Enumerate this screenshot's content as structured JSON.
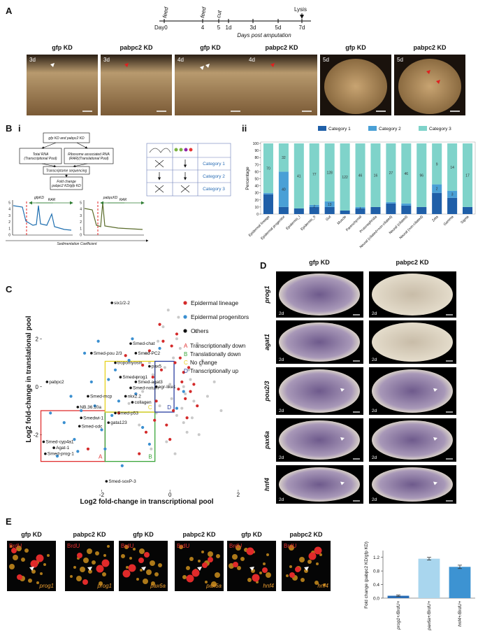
{
  "panel_labels": [
    "A",
    "B",
    "i",
    "ii",
    "C",
    "D",
    "E"
  ],
  "panel_a": {
    "timeline": {
      "day0": "Day0",
      "feed": [
        "feed",
        "feed"
      ],
      "cut": "cut",
      "ticks": [
        "4",
        "5",
        "1d",
        "3d",
        "5d",
        "7d"
      ],
      "lysis": "Lysis",
      "axis_label": "Days post amputation"
    },
    "images": [
      {
        "title": "gfp KD",
        "day": "3d"
      },
      {
        "title": "pabpc2 KD",
        "day": "3d"
      },
      {
        "title": "gfp KD",
        "day": "4d"
      },
      {
        "title": "pabpc2 KD",
        "day": "4d"
      },
      {
        "title": "gfp KD",
        "day": "5d"
      },
      {
        "title": "pabpc2 KD",
        "day": "5d"
      }
    ]
  },
  "panel_b": {
    "flow": [
      [
        "gfp KD and pabpc2 KD"
      ],
      [
        "Total RNA",
        "(Transcriptional Pool)"
      ],
      [
        "Ribosome associated RNA",
        "(RAR)(Translational Pool)"
      ],
      [
        "Transcriptome sequencing"
      ],
      [
        "Fold change",
        "pabpc2 KD/gfp KD"
      ]
    ],
    "profiles": [
      {
        "title": "gfpKD",
        "region": "RAR"
      },
      {
        "title": "pabpcKD",
        "region": "RAR"
      }
    ],
    "profile_yticks": [
      0,
      1,
      2,
      3,
      4,
      5
    ],
    "x_label": "Sedimentation Coefficient",
    "categories": [
      "Category 1",
      "Category 2",
      "Category 3"
    ]
  },
  "panel_d": {
    "columns": [
      "gfp KD",
      "pabpc2 KD"
    ],
    "genes": [
      "prog1",
      "agat1",
      "pou2/3",
      "pax6a",
      "hnf4"
    ],
    "day": "2d"
  },
  "panel_e": {
    "images": [
      {
        "title": "gfp KD",
        "stain": "BrdU",
        "gene": "prog1"
      },
      {
        "title": "pabpc2 KD",
        "stain": "BrdU",
        "gene": "prog1"
      },
      {
        "title": "gfp KD",
        "stain": "BrdU",
        "gene": "pax6a"
      },
      {
        "title": "pabpc2 KD",
        "stain": "BrdU",
        "gene": "pax6a"
      },
      {
        "title": "gfp KD",
        "stain": "BrdU",
        "gene": "hnf4"
      },
      {
        "title": "pabpc2 KD",
        "stain": "BrdU",
        "gene": "hnf4"
      }
    ]
  },
  "chart_data": [
    {
      "type": "stacked_bar",
      "y_label": "Percentage",
      "categories": [
        "Epidermal lineage",
        "Epidermal progenitor",
        "Epidermis_I",
        "Epidermis_II",
        "Gut",
        "Muscle",
        "Parenchymal",
        "Protonephridia",
        "Neural (ciliated+non-ciliated)",
        "Neural (ciliated)",
        "Neural (non-ciliated)",
        "Zeta",
        "Gamma",
        "Sigma"
      ],
      "series": [
        {
          "name": "Category 1",
          "color": "#1f5fa8",
          "values": [
            28,
            10,
            8,
            10,
            10,
            5,
            8,
            10,
            15,
            12,
            10,
            30,
            23,
            10
          ]
        },
        {
          "name": "Category 2",
          "color": "#4aa0d6",
          "values": [
            2,
            50,
            0,
            3,
            8,
            0,
            2,
            0,
            2,
            3,
            0,
            12,
            10,
            0
          ],
          "count_labels": [
            null,
            "40",
            null,
            "2",
            "13",
            null,
            "1",
            null,
            null,
            null,
            null,
            "2",
            "3",
            null
          ]
        },
        {
          "name": "Category 3",
          "color": "#7fd3ca",
          "values": [
            70,
            40,
            92,
            87,
            82,
            95,
            90,
            90,
            83,
            85,
            90,
            58,
            67,
            90
          ],
          "count_labels": [
            "70",
            "32",
            "41",
            "77",
            "128",
            "122",
            "46",
            "16",
            "27",
            "46",
            "96",
            "9",
            "14",
            "17"
          ]
        }
      ],
      "ylim": [
        0,
        100
      ],
      "yticks": [
        0,
        10,
        20,
        30,
        40,
        50,
        60,
        70,
        80,
        90,
        100
      ],
      "legend": "top"
    },
    {
      "type": "scatter",
      "x_label": "Log2 fold-change in transcriptional pool",
      "y_label": "Log2 fold-change in translational pool",
      "xlim": [
        -3.75,
        2.35
      ],
      "xticks": [
        -2,
        0,
        2
      ],
      "ylim": [
        -4.3,
        4.9
      ],
      "yticks": [
        -2,
        0,
        2
      ],
      "legend": "upper right",
      "background": {
        "color": "#c9c9c9",
        "x": [
          -0.5,
          -0.3,
          0.1,
          0.4,
          0.6,
          -0.8,
          0.2,
          0.9,
          -0.1,
          0.3,
          0.7,
          -0.6,
          0.5,
          0.0,
          -0.4,
          1.1,
          0.8,
          -0.2,
          0.35,
          0.55,
          -1.0,
          1.3,
          0.15,
          -0.7,
          0.45,
          0.25,
          -0.15,
          0.65,
          0.05,
          -0.35,
          1.5,
          -1.2,
          0.75,
          0.85,
          -0.9,
          0.95,
          -0.05,
          0.4,
          0.2,
          -0.55
        ],
        "y": [
          0.5,
          -0.8,
          1.2,
          -1.5,
          0.3,
          -0.2,
          2.0,
          0.9,
          -2.3,
          1.6,
          -0.6,
          1.0,
          -1.9,
          0.1,
          -1.1,
          -0.4,
          1.8,
          2.5,
          -0.9,
          0.7,
          0.4,
          0.2,
          -2.8,
          1.4,
          -0.3,
          2.9,
          0.8,
          -1.3,
          -0.5,
          1.9,
          -1.0,
          -0.7,
          2.3,
          -2.0,
          -1.6,
          1.1,
          3.2,
          0.0,
          -1.2,
          -2.6
        ]
      },
      "series": [
        {
          "name": "Epidermal lineage",
          "color": "#d42a2a",
          "x": [
            -0.2,
            0.3,
            -0.5,
            0.6,
            0.1,
            -0.8,
            0.4,
            -0.1,
            0.2,
            -0.4,
            0.7,
            -0.6,
            0.0,
            0.5,
            -0.3,
            0.8,
            -1.0,
            0.35,
            -0.7,
            0.15,
            -2.4,
            -1.5,
            -0.9,
            0.45,
            -0.25,
            0.25,
            -1.3,
            0.55,
            -0.45,
            0.05
          ],
          "y": [
            1.9,
            1.2,
            0.4,
            -0.2,
            -1.0,
            0.9,
            0.6,
            -1.6,
            2.2,
            -0.6,
            0.1,
            1.5,
            -2.2,
            -1.3,
            2.6,
            -0.8,
            -0.3,
            0.2,
            -1.9,
            1.0,
            -2.6,
            -1.1,
            -2.8,
            -0.5,
            0.7,
            -0.1,
            1.3,
            0.8,
            -1.4,
            1.7
          ]
        },
        {
          "name": "Epidermal progenitors",
          "color": "#3a8fd0",
          "x": [
            -3.1,
            -2.8,
            -2.5,
            -2.2,
            -1.9,
            -1.6,
            -2.9,
            -2.3,
            -1.7,
            -1.4,
            -3.3,
            -2.0,
            -1.2,
            -1.0,
            -0.8,
            -2.6,
            -1.8,
            -0.6,
            -0.3,
            -3.5,
            -2.1,
            -1.5,
            0.2,
            -2.7,
            -1.1,
            0.4
          ],
          "y": [
            -1.5,
            -2.2,
            1.4,
            -0.8,
            -2.6,
            0.7,
            -0.4,
            0.2,
            -1.2,
            -3.3,
            -2.9,
            -1.8,
            1.1,
            -0.3,
            -1.7,
            -1.0,
            0.3,
            -2.4,
            1.6,
            -1.1,
            1.9,
            -0.6,
            -0.9,
            -2.7,
            2.0,
            -0.2
          ]
        },
        {
          "name": "Others",
          "color": "#111111",
          "x": [
            -1.7,
            -1.15,
            -2.3,
            -1.0,
            -1.6,
            -0.6,
            -1.45,
            -1.0,
            -1.15,
            -0.4,
            -2.4,
            -1.3,
            -2.7,
            -1.6,
            -2.6,
            -1.8,
            -2.65,
            -1.1,
            -3.7,
            -3.4,
            -3.65,
            -3.6,
            -1.86
          ],
          "y": [
            3.5,
            1.8,
            1.4,
            1.4,
            1.0,
            0.85,
            0.4,
            0.2,
            -0.05,
            0.0,
            -0.4,
            -0.4,
            -0.85,
            -1.1,
            -1.3,
            -1.5,
            -1.65,
            -0.65,
            -2.3,
            -2.55,
            -2.8,
            0.2,
            -3.95
          ],
          "labels": [
            "six1/2-2",
            "Smed-chat",
            "Smed-pou 2/3",
            "Smed-PC2",
            "tropomyosin",
            "pax5",
            "Smed-prog1",
            "Smed-agat3",
            "Smed-notum",
            "egr-like1",
            "Smed-mcp",
            "nkx2.2",
            "NB.36.10a",
            "Smed-p53",
            "Smedwi-1",
            "gata123",
            "Smed-odc",
            "collagen",
            "Smed-cyp4a1",
            "Agat-1",
            "Smed-prog-1",
            "pabpc2",
            "Smed-soxP-3"
          ]
        }
      ],
      "regions": [
        {
          "label": "A",
          "text": "Transcriptionally down",
          "color": "#e03030",
          "xlim": [
            -3.78,
            -1.9
          ],
          "ylim": [
            -3.12,
            -1.0
          ]
        },
        {
          "label": "B",
          "text": "Translationally down",
          "color": "#3aa53a",
          "xlim": [
            -1.9,
            -0.44
          ],
          "ylim": [
            -3.12,
            -1.06
          ]
        },
        {
          "label": "C",
          "text": "No change",
          "color": "#e6d21e",
          "xlim": [
            -1.9,
            -0.44
          ],
          "ylim": [
            -1.06,
            1.06
          ]
        },
        {
          "label": "D",
          "text": "Transcriptionally up",
          "color": "#2a3fa0",
          "xlim": [
            -0.44,
            0.12
          ],
          "ylim": [
            -1.06,
            1.06
          ]
        }
      ]
    },
    {
      "type": "bar",
      "y_label": "Fold change (pabpc2 KD/gfp KD)",
      "categories": [
        "prog1+/BrdU+",
        "pax6a+/BrdU+",
        "hnf4+/BrdU+"
      ],
      "values": [
        0.07,
        1.16,
        0.92
      ],
      "errors": [
        0.02,
        0.04,
        0.05
      ],
      "colors": [
        "#2a6db5",
        "#a9d6ee",
        "#3d93d2"
      ],
      "ylim": [
        0,
        1.4
      ],
      "yticks": [
        {
          "value": 0,
          "label": "0.0"
        },
        0.4,
        0.8,
        1.2
      ]
    }
  ]
}
